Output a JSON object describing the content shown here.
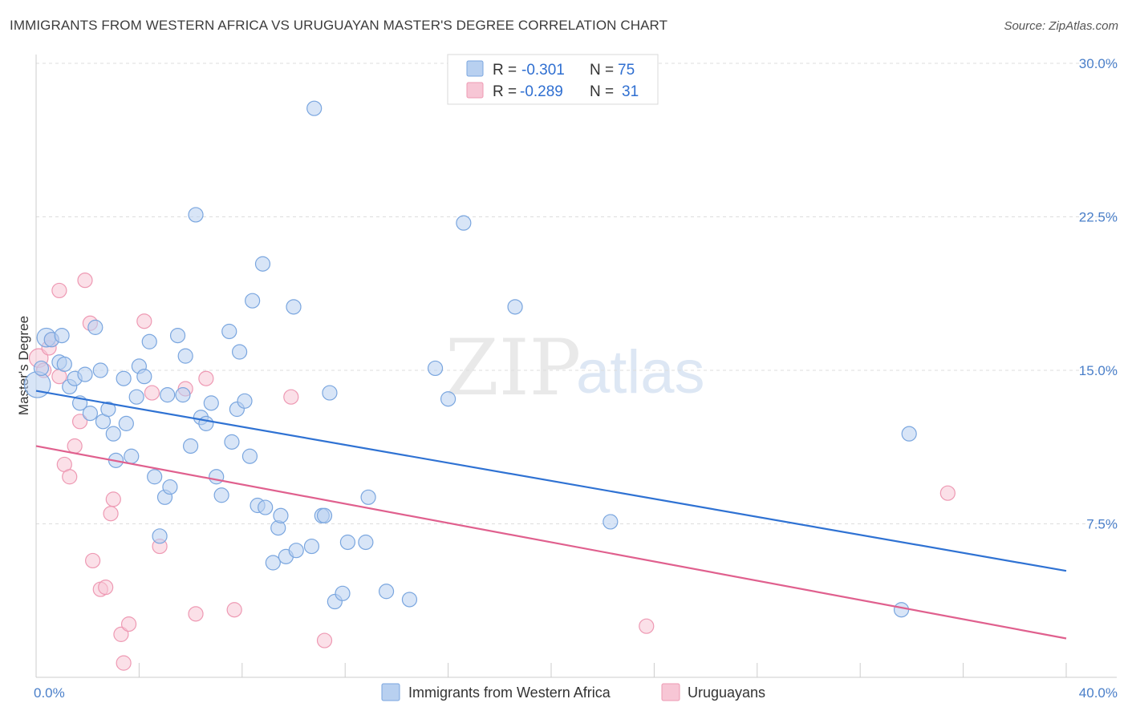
{
  "header": {
    "title": "IMMIGRANTS FROM WESTERN AFRICA VS URUGUAYAN MASTER'S DEGREE CORRELATION CHART",
    "source": "Source: ZipAtlas.com"
  },
  "watermark": {
    "zip": "ZIP",
    "atlas": "atlas"
  },
  "colors": {
    "blue_fill": "#b8d0f0",
    "blue_stroke": "#7aa6df",
    "blue_line": "#2f72d3",
    "pink_fill": "#f7c6d5",
    "pink_stroke": "#ee99b3",
    "pink_line": "#e0608e",
    "grid": "#dddddd",
    "axis_text": "#4a7fc9"
  },
  "legend": {
    "rows": [
      {
        "r_label": "R =",
        "r_value": "-0.301",
        "n_label": "N =",
        "n_value": "75",
        "color": "blue"
      },
      {
        "r_label": "R =",
        "r_value": "-0.289",
        "n_label": "N =",
        "n_value": "31",
        "color": "pink"
      }
    ]
  },
  "bottom_legend": [
    {
      "label": "Immigrants from Western Africa",
      "color": "blue"
    },
    {
      "label": "Uruguayans",
      "color": "pink"
    }
  ],
  "chart_data": {
    "type": "scatter",
    "title": "IMMIGRANTS FROM WESTERN AFRICA VS URUGUAYAN MASTER'S DEGREE CORRELATION CHART",
    "xlabel": "",
    "ylabel": "Master's Degree",
    "xlim": [
      0,
      40
    ],
    "ylim": [
      0,
      30
    ],
    "x_tick_labels": [
      "0.0%",
      "40.0%"
    ],
    "y_ticks": [
      7.5,
      15.0,
      22.5,
      30.0
    ],
    "y_tick_labels": [
      "7.5%",
      "15.0%",
      "22.5%",
      "30.0%"
    ],
    "grid": true,
    "series": [
      {
        "name": "Immigrants from Western Africa",
        "color": "blue",
        "trend": {
          "x": [
            0,
            40
          ],
          "y": [
            14.0,
            5.2
          ]
        },
        "points": [
          [
            0.05,
            14.3,
            1.8
          ],
          [
            0.2,
            15.1,
            1
          ],
          [
            0.4,
            16.6,
            1.3
          ],
          [
            0.6,
            16.5,
            1
          ],
          [
            0.9,
            15.4,
            1
          ],
          [
            1.0,
            16.7,
            1
          ],
          [
            1.1,
            15.3,
            1
          ],
          [
            1.3,
            14.2,
            1
          ],
          [
            1.5,
            14.6,
            1
          ],
          [
            1.7,
            13.4,
            1
          ],
          [
            1.9,
            14.8,
            1
          ],
          [
            2.1,
            12.9,
            1
          ],
          [
            2.3,
            17.1,
            1
          ],
          [
            2.5,
            15.0,
            1
          ],
          [
            2.6,
            12.5,
            1
          ],
          [
            2.8,
            13.1,
            1
          ],
          [
            3.0,
            11.9,
            1
          ],
          [
            3.1,
            10.6,
            1
          ],
          [
            3.4,
            14.6,
            1
          ],
          [
            3.5,
            12.4,
            1
          ],
          [
            3.7,
            10.8,
            1
          ],
          [
            3.9,
            13.7,
            1
          ],
          [
            4.0,
            15.2,
            1
          ],
          [
            4.2,
            14.7,
            1
          ],
          [
            4.4,
            16.4,
            1
          ],
          [
            4.6,
            9.8,
            1
          ],
          [
            4.8,
            6.9,
            1
          ],
          [
            5.0,
            8.8,
            1
          ],
          [
            5.1,
            13.8,
            1
          ],
          [
            5.2,
            9.3,
            1
          ],
          [
            5.5,
            16.7,
            1
          ],
          [
            5.7,
            13.8,
            1
          ],
          [
            5.8,
            15.7,
            1
          ],
          [
            6.0,
            11.3,
            1
          ],
          [
            6.2,
            22.6,
            1
          ],
          [
            6.4,
            12.7,
            1
          ],
          [
            6.6,
            12.4,
            1
          ],
          [
            6.8,
            13.4,
            1
          ],
          [
            7.0,
            9.8,
            1
          ],
          [
            7.2,
            8.9,
            1
          ],
          [
            7.5,
            16.9,
            1
          ],
          [
            7.6,
            11.5,
            1
          ],
          [
            7.8,
            13.1,
            1
          ],
          [
            7.9,
            15.9,
            1
          ],
          [
            8.1,
            13.5,
            1
          ],
          [
            8.3,
            10.8,
            1
          ],
          [
            8.4,
            18.4,
            1
          ],
          [
            8.6,
            8.4,
            1
          ],
          [
            8.8,
            20.2,
            1
          ],
          [
            8.9,
            8.3,
            1
          ],
          [
            9.2,
            5.6,
            1
          ],
          [
            9.4,
            7.3,
            1
          ],
          [
            9.5,
            7.9,
            1
          ],
          [
            9.7,
            5.9,
            1
          ],
          [
            10.0,
            18.1,
            1
          ],
          [
            10.1,
            6.2,
            1
          ],
          [
            10.8,
            27.8,
            1
          ],
          [
            10.7,
            6.4,
            1
          ],
          [
            11.1,
            7.9,
            1
          ],
          [
            11.2,
            7.9,
            1
          ],
          [
            11.4,
            13.9,
            1
          ],
          [
            11.6,
            3.7,
            1
          ],
          [
            11.9,
            4.1,
            1
          ],
          [
            12.1,
            6.6,
            1
          ],
          [
            12.8,
            6.6,
            1
          ],
          [
            12.9,
            8.8,
            1
          ],
          [
            13.6,
            4.2,
            1
          ],
          [
            14.5,
            3.8,
            1
          ],
          [
            15.5,
            15.1,
            1
          ],
          [
            16.0,
            13.6,
            1
          ],
          [
            16.6,
            22.2,
            1
          ],
          [
            18.6,
            18.1,
            1
          ],
          [
            22.3,
            7.6,
            1
          ],
          [
            33.9,
            11.9,
            1
          ],
          [
            33.6,
            3.3,
            1
          ]
        ]
      },
      {
        "name": "Uruguayans",
        "color": "pink",
        "trend": {
          "x": [
            0,
            40
          ],
          "y": [
            11.3,
            1.9
          ]
        },
        "points": [
          [
            0.1,
            15.6,
            1.3
          ],
          [
            0.3,
            15.0,
            1
          ],
          [
            0.5,
            16.1,
            1
          ],
          [
            0.9,
            14.7,
            1
          ],
          [
            0.9,
            18.9,
            1
          ],
          [
            1.1,
            10.4,
            1
          ],
          [
            1.3,
            9.8,
            1
          ],
          [
            1.5,
            11.3,
            1
          ],
          [
            1.7,
            12.5,
            1
          ],
          [
            1.9,
            19.4,
            1
          ],
          [
            2.1,
            17.3,
            1
          ],
          [
            2.2,
            5.7,
            1
          ],
          [
            2.5,
            4.3,
            1
          ],
          [
            2.7,
            4.4,
            1
          ],
          [
            2.9,
            8.0,
            1
          ],
          [
            3.0,
            8.7,
            1
          ],
          [
            3.3,
            2.1,
            1
          ],
          [
            3.4,
            0.7,
            1
          ],
          [
            3.6,
            2.6,
            1
          ],
          [
            4.2,
            17.4,
            1
          ],
          [
            4.5,
            13.9,
            1
          ],
          [
            4.8,
            6.4,
            1
          ],
          [
            5.8,
            14.1,
            1
          ],
          [
            6.2,
            3.1,
            1
          ],
          [
            6.6,
            14.6,
            1
          ],
          [
            7.7,
            3.3,
            1
          ],
          [
            9.9,
            13.7,
            1
          ],
          [
            11.2,
            1.8,
            1
          ],
          [
            23.7,
            2.5,
            1
          ],
          [
            35.4,
            9.0,
            1
          ],
          [
            0.6,
            16.5,
            1
          ]
        ]
      }
    ]
  }
}
